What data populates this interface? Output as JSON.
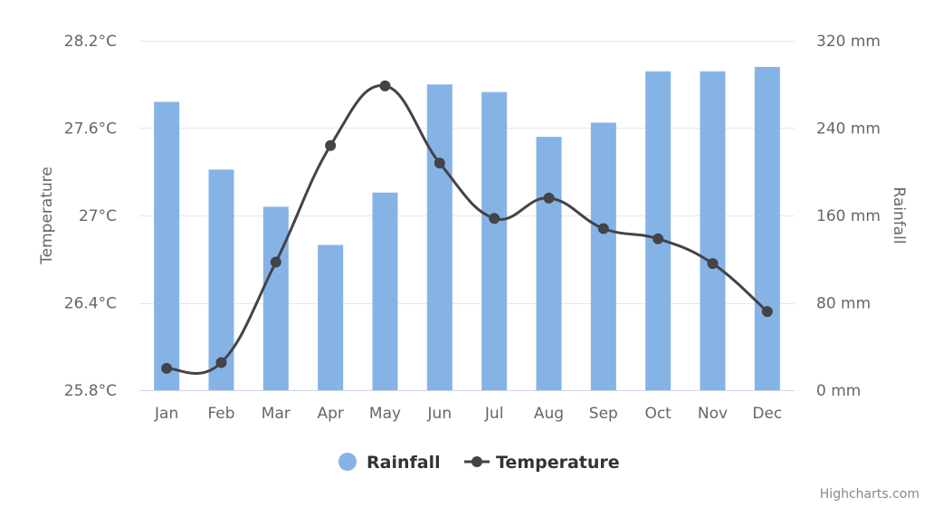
{
  "chart_data": {
    "type": "bar+line",
    "categories": [
      "Jan",
      "Feb",
      "Mar",
      "Apr",
      "May",
      "Jun",
      "Jul",
      "Aug",
      "Sep",
      "Oct",
      "Nov",
      "Dec"
    ],
    "series": [
      {
        "name": "Rainfall",
        "type": "bar",
        "axis": "right",
        "color": "#86b3e5",
        "values": [
          264,
          202,
          168,
          133,
          181,
          280,
          273,
          232,
          245,
          292,
          292,
          296
        ]
      },
      {
        "name": "Temperature",
        "type": "line",
        "axis": "left",
        "color": "#434348",
        "values": [
          25.95,
          25.99,
          26.68,
          27.48,
          27.89,
          27.36,
          26.98,
          27.12,
          26.91,
          26.84,
          26.67,
          26.34
        ]
      }
    ],
    "left_axis": {
      "title": "Temperature",
      "min": 25.8,
      "max": 28.2,
      "tick_values": [
        25.8,
        26.4,
        27,
        27.6,
        28.2
      ],
      "tick_labels": [
        "25.8°C",
        "26.4°C",
        "27°C",
        "27.6°C",
        "28.2°C"
      ]
    },
    "right_axis": {
      "title": "Rainfall",
      "min": 0,
      "max": 320,
      "tick_values": [
        0,
        80,
        160,
        240,
        320
      ],
      "tick_labels": [
        "0 mm",
        "80 mm",
        "160 mm",
        "240 mm",
        "320 mm"
      ]
    },
    "legend": {
      "placement": "bottom-center",
      "items": [
        "Rainfall",
        "Temperature"
      ]
    },
    "grid": true,
    "credits": "Highcharts.com"
  }
}
